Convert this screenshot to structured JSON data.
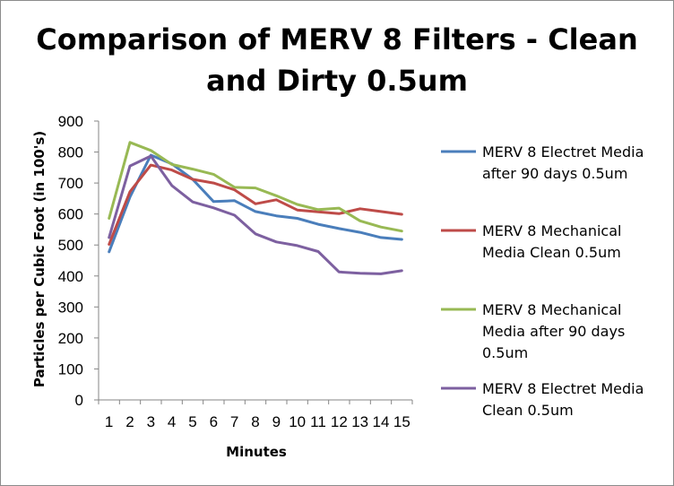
{
  "chart_data": {
    "type": "line",
    "title_lines": [
      "Comparison of MERV 8 Filters - Clean",
      "and Dirty 0.5um"
    ],
    "xlabel": "Minutes",
    "ylabel": "Particles per Cubic Foot (in 100's)",
    "categories": [
      "1",
      "2",
      "3",
      "4",
      "5",
      "6",
      "7",
      "8",
      "9",
      "10",
      "11",
      "12",
      "13",
      "14",
      "15"
    ],
    "ylim": [
      0,
      900
    ],
    "y_ticks": [
      "0",
      "100",
      "200",
      "300",
      "400",
      "500",
      "600",
      "700",
      "800",
      "900"
    ],
    "grid": false,
    "legend_position": "right",
    "series": [
      {
        "name": "MERV 8 Electret Media after 90 days 0.5um",
        "legend_lines": [
          "MERV 8 Electret Media",
          "after 90 days 0.5um"
        ],
        "color": "#4a7ebb",
        "values": [
          478,
          655,
          790,
          762,
          712,
          640,
          643,
          608,
          594,
          586,
          567,
          553,
          541,
          524,
          518
        ]
      },
      {
        "name": "MERV 8 Mechanical Media Clean 0.5um",
        "legend_lines": [
          "MERV 8 Mechanical",
          "Media Clean 0.5um"
        ],
        "color": "#be4b48",
        "values": [
          502,
          672,
          758,
          742,
          712,
          700,
          678,
          633,
          646,
          613,
          607,
          601,
          617,
          608,
          599
        ]
      },
      {
        "name": "MERV 8 Mechanical Media after 90 days 0.5um",
        "legend_lines": [
          "MERV 8 Mechanical",
          "Media after 90 days",
          "0.5um"
        ],
        "color": "#98b954",
        "values": [
          586,
          831,
          805,
          760,
          745,
          728,
          686,
          684,
          659,
          631,
          614,
          619,
          578,
          558,
          545
        ]
      },
      {
        "name": "MERV 8 Electret Media Clean 0.5um",
        "legend_lines": [
          "MERV 8 Electret Media",
          "Clean 0.5um"
        ],
        "color": "#7d60a0",
        "values": [
          524,
          755,
          787,
          692,
          639,
          620,
          596,
          536,
          510,
          498,
          479,
          413,
          409,
          407,
          417
        ]
      }
    ]
  }
}
